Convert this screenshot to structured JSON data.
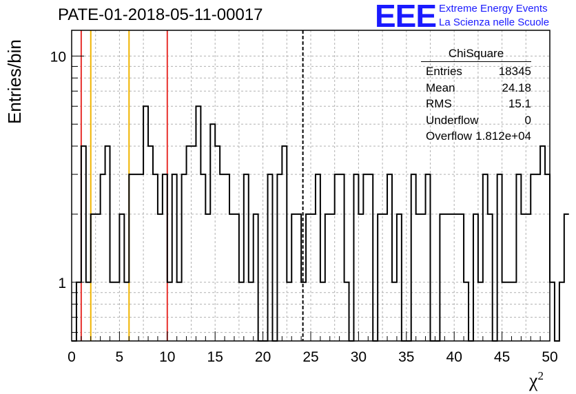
{
  "title": "PATE-01-2018-05-11-00017",
  "logo": {
    "mark": "EEE",
    "line1": "Extreme Energy Events",
    "line2": "La Scienza nelle Scuole",
    "color": "#1a1aff"
  },
  "stats": {
    "name": "ChiSquare",
    "rows": [
      {
        "label": "Entries",
        "value": "18345"
      },
      {
        "label": "Mean",
        "value": "24.18"
      },
      {
        "label": "RMS",
        "value": "15.1"
      },
      {
        "label": "Underflow",
        "value": "0"
      },
      {
        "label": "Overflow",
        "value": "1.812e+04"
      }
    ]
  },
  "chart_data": {
    "type": "histogram-step",
    "xlabel": "χ",
    "xlabel_sup": "2",
    "ylabel": "Entries/bin",
    "xlim": [
      0,
      50
    ],
    "ylim": [
      0.55,
      13
    ],
    "log_y": true,
    "grid": true,
    "bin_width": 0.5,
    "x_ticks": [
      0,
      5,
      10,
      15,
      20,
      25,
      30,
      35,
      40,
      45,
      50
    ],
    "y_tick_labels": [
      {
        "value": 1,
        "label": "1"
      },
      {
        "value": 10,
        "label": "10"
      }
    ],
    "values": [
      0,
      1,
      4,
      1,
      2,
      2,
      3,
      4,
      1,
      1,
      2,
      1,
      3,
      3,
      3,
      6,
      4,
      3,
      2,
      3,
      1,
      3,
      1,
      3,
      4,
      4,
      6,
      3,
      2,
      5,
      4,
      3,
      3,
      2,
      2,
      1,
      3,
      1,
      2,
      0,
      0,
      3,
      0,
      3,
      4,
      1,
      2,
      2,
      1,
      2,
      2,
      3,
      1,
      2,
      2,
      3,
      3,
      1,
      0,
      3,
      2,
      3,
      3,
      0,
      2,
      2,
      3,
      1,
      2,
      0,
      0,
      3,
      2,
      2,
      3,
      0,
      0,
      2,
      2,
      2,
      2,
      2,
      1,
      0,
      2,
      1,
      3,
      2,
      0,
      3,
      1,
      1,
      1,
      3,
      2,
      2,
      3,
      3,
      4,
      3,
      1,
      0,
      1,
      2
    ],
    "vertical_lines": [
      {
        "x": 1,
        "color": "#e8302c"
      },
      {
        "x": 2,
        "color": "#f0b400"
      },
      {
        "x": 6,
        "color": "#f0b400"
      },
      {
        "x": 10,
        "color": "#e8302c"
      },
      {
        "x": 24.18,
        "color": "#000000",
        "style": "dashed"
      }
    ]
  }
}
